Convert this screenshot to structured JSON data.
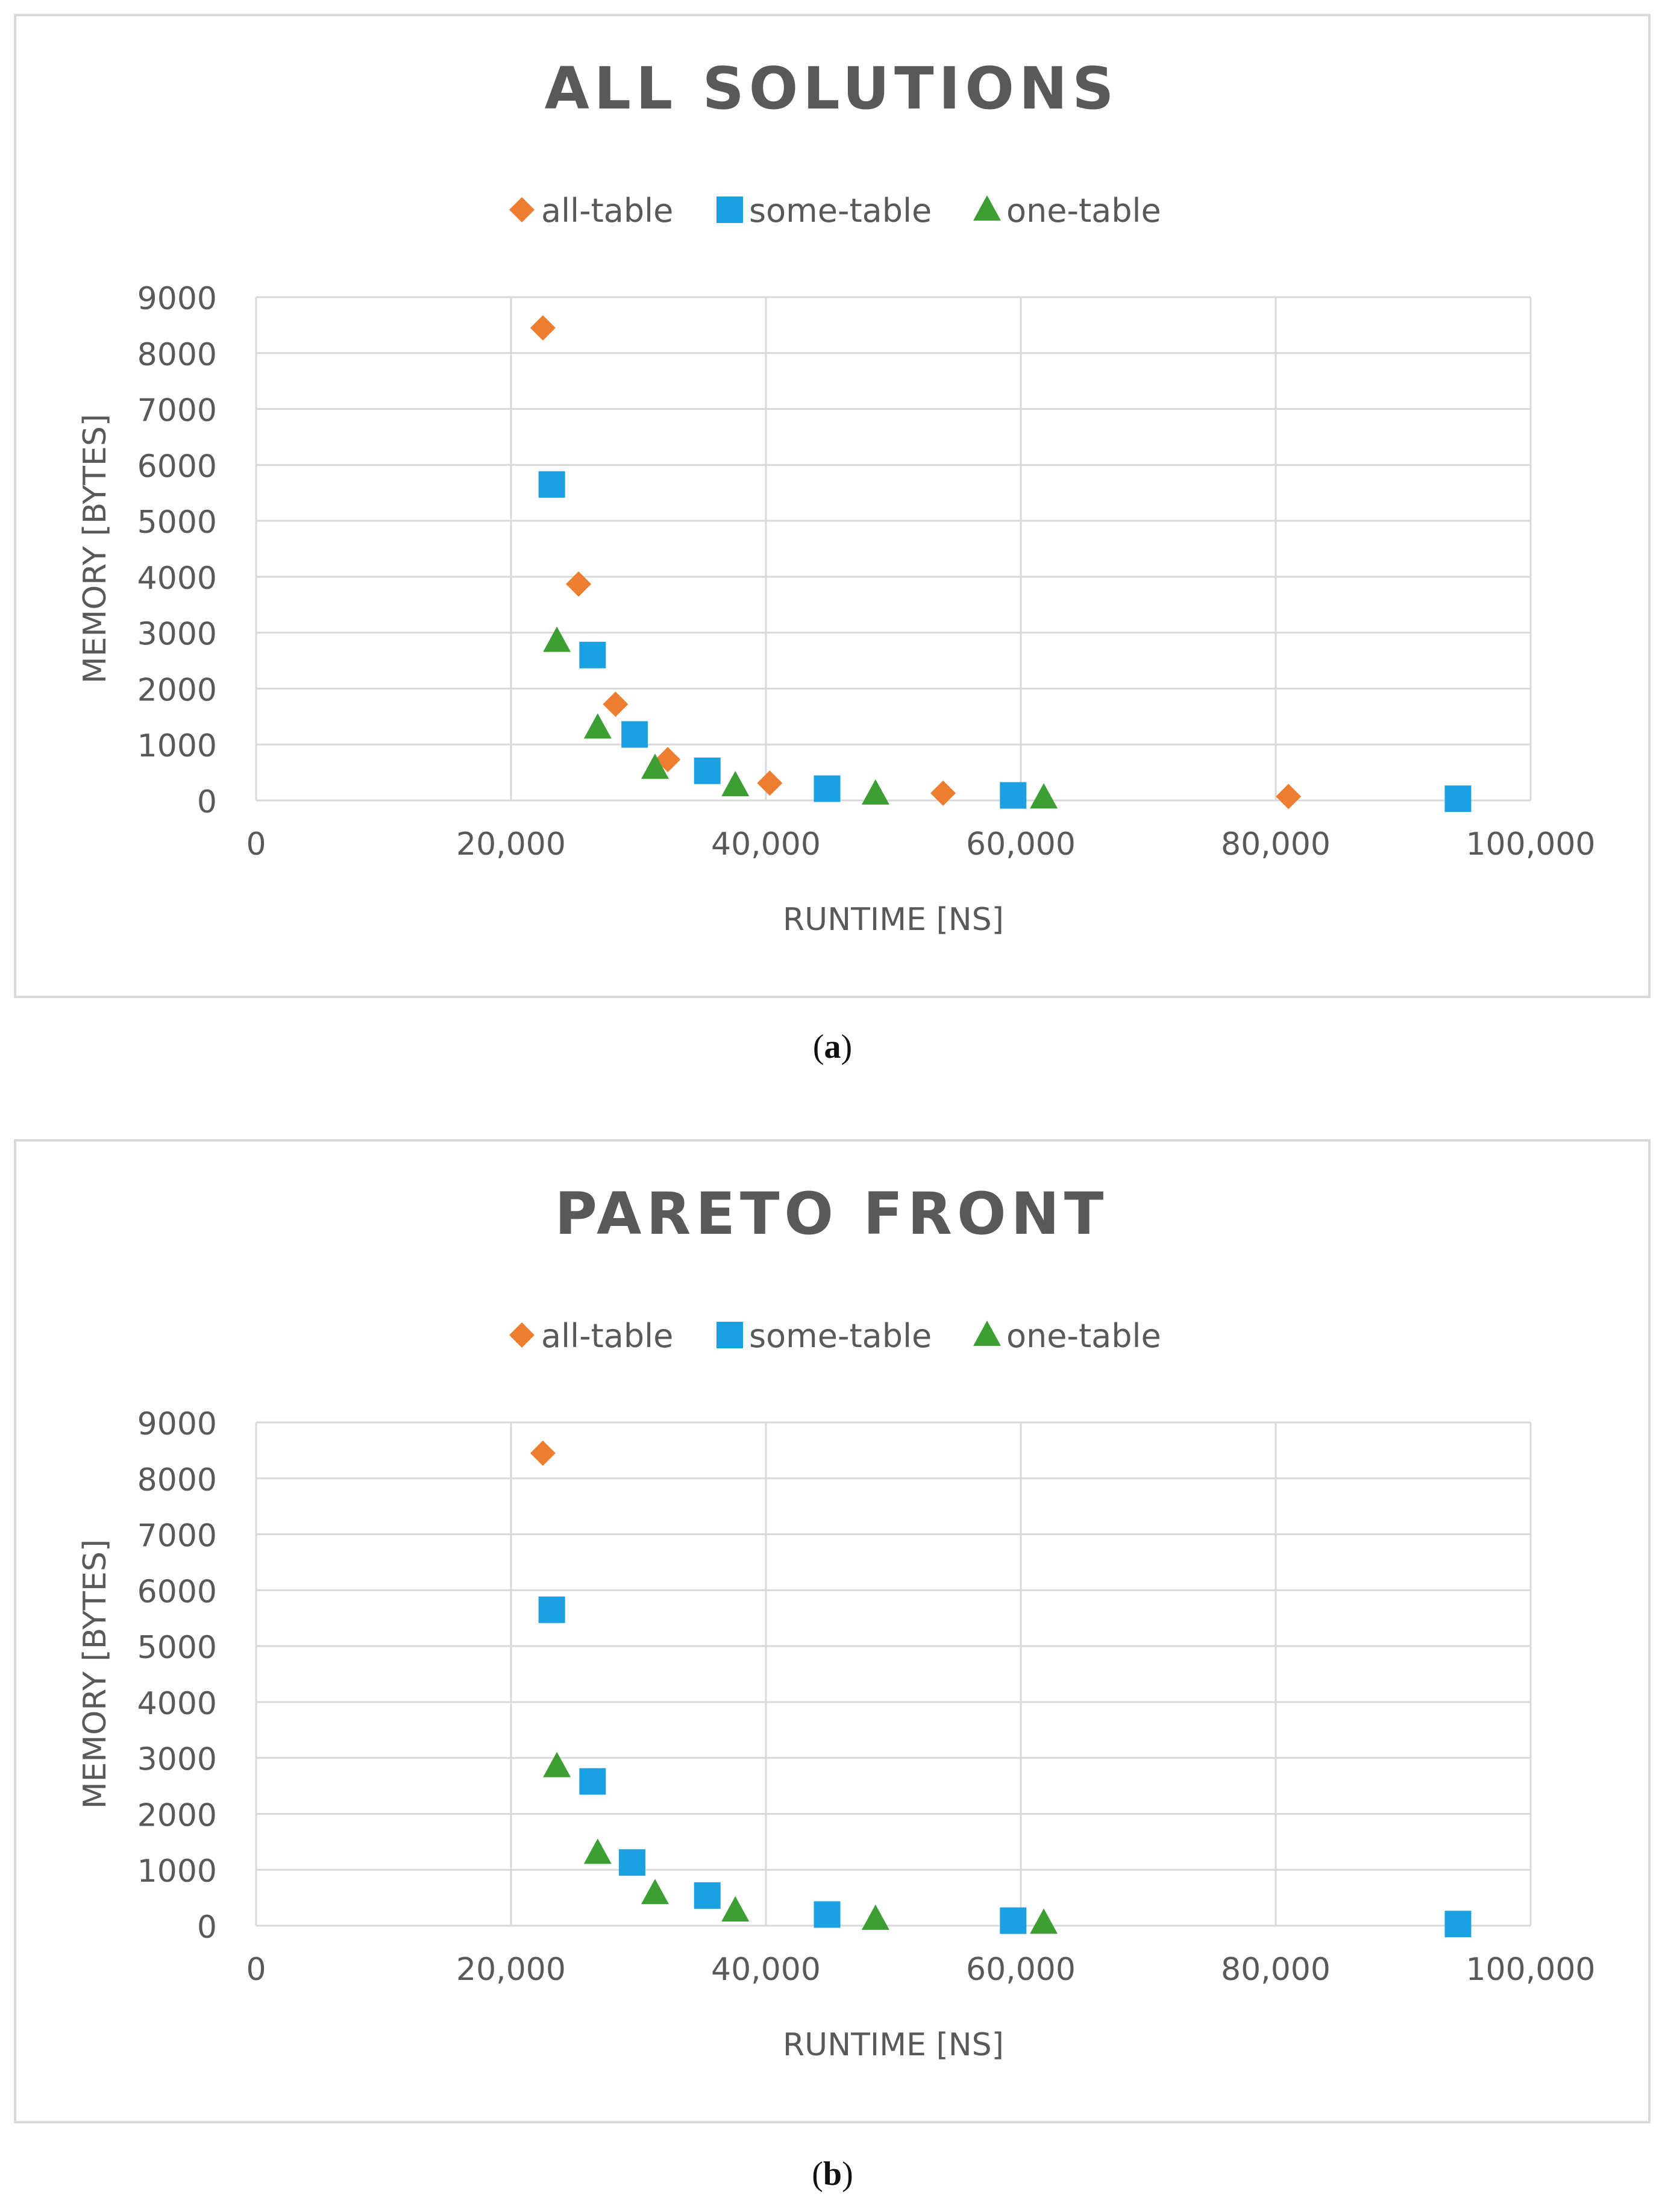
{
  "chart_data": [
    {
      "type": "scatter",
      "title": "ALL SOLUTIONS",
      "xlabel": "RUNTIME [NS]",
      "ylabel": "MEMORY [BYTES]",
      "xlim": [
        0,
        100000
      ],
      "ylim": [
        0,
        9000
      ],
      "x_ticks": [
        "0",
        "20,000",
        "40,000",
        "60,000",
        "80,000",
        "100,000"
      ],
      "y_ticks": [
        "0",
        "1000",
        "2000",
        "3000",
        "4000",
        "5000",
        "6000",
        "7000",
        "8000",
        "9000"
      ],
      "grid": true,
      "legend_position": "top",
      "caption": "a",
      "series": [
        {
          "name": "all-table",
          "color": "#ed7d31",
          "marker": "diamond",
          "points": [
            [
              22500,
              8450
            ],
            [
              25300,
              3870
            ],
            [
              28200,
              1720
            ],
            [
              32300,
              730
            ],
            [
              40300,
              310
            ],
            [
              53900,
              130
            ],
            [
              81000,
              70
            ]
          ]
        },
        {
          "name": "some-table",
          "color": "#1ba1e2",
          "marker": "square",
          "points": [
            [
              23200,
              5650
            ],
            [
              26400,
              2600
            ],
            [
              29700,
              1180
            ],
            [
              35400,
              530
            ],
            [
              44800,
              210
            ],
            [
              59400,
              90
            ],
            [
              94300,
              30
            ]
          ]
        },
        {
          "name": "one-table",
          "color": "#3d9e34",
          "marker": "triangle",
          "points": [
            [
              23600,
              2850
            ],
            [
              26800,
              1300
            ],
            [
              31300,
              580
            ],
            [
              37600,
              270
            ],
            [
              48600,
              120
            ],
            [
              61800,
              50
            ]
          ]
        }
      ]
    },
    {
      "type": "scatter",
      "title": "PARETO FRONT",
      "xlabel": "RUNTIME [NS]",
      "ylabel": "MEMORY [BYTES]",
      "xlim": [
        0,
        100000
      ],
      "ylim": [
        0,
        9000
      ],
      "x_ticks": [
        "0",
        "20,000",
        "40,000",
        "60,000",
        "80,000",
        "100,000"
      ],
      "y_ticks": [
        "0",
        "1000",
        "2000",
        "3000",
        "4000",
        "5000",
        "6000",
        "7000",
        "8000",
        "9000"
      ],
      "grid": true,
      "legend_position": "top",
      "caption": "b",
      "series": [
        {
          "name": "all-table",
          "color": "#ed7d31",
          "marker": "diamond",
          "points": [
            [
              22500,
              8450
            ]
          ]
        },
        {
          "name": "some-table",
          "color": "#1ba1e2",
          "marker": "square",
          "points": [
            [
              23200,
              5650
            ],
            [
              26400,
              2580
            ],
            [
              29500,
              1130
            ],
            [
              35400,
              540
            ],
            [
              44800,
              200
            ],
            [
              59400,
              90
            ],
            [
              94300,
              30
            ]
          ]
        },
        {
          "name": "one-table",
          "color": "#3d9e34",
          "marker": "triangle",
          "points": [
            [
              23600,
              2850
            ],
            [
              26800,
              1300
            ],
            [
              31300,
              580
            ],
            [
              37600,
              270
            ],
            [
              48600,
              120
            ],
            [
              61800,
              50
            ]
          ]
        }
      ]
    }
  ]
}
